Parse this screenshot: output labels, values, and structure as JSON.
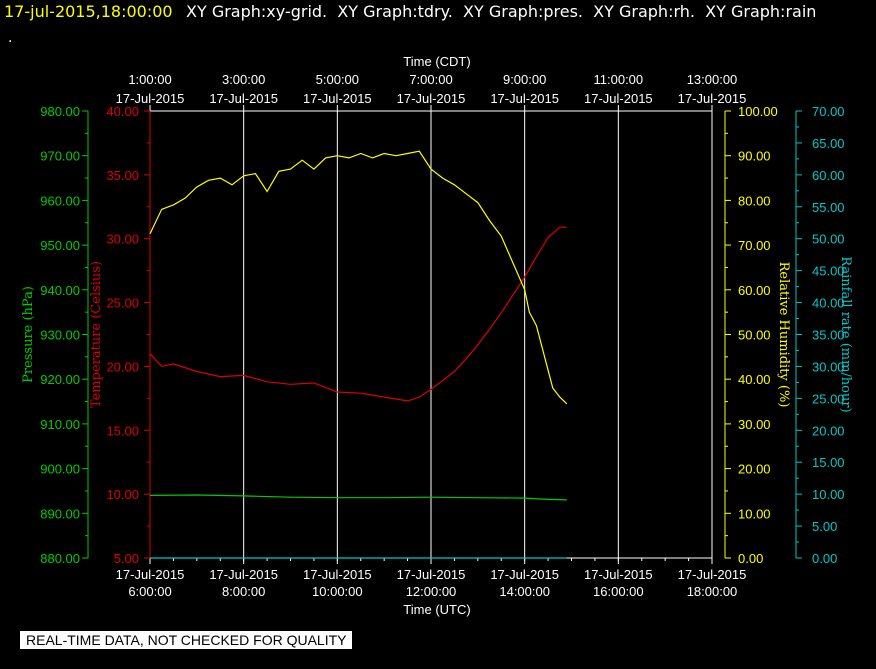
{
  "header": {
    "timestamp": "17-jul-2015,18:00:00",
    "graphs": "XY Graph:xy-grid.  XY Graph:tdry.  XY Graph:pres.  XY Graph:rh.  XY Graph:rain",
    "dot": "."
  },
  "notice": "REAL-TIME DATA, NOT CHECKED FOR QUALITY",
  "colors": {
    "background": "#000000",
    "grid": "#ffffff",
    "timestamp": "#ffff00",
    "pressure": "#00cc00",
    "temperature": "#dd0000",
    "humidity": "#ffff00",
    "rainfall": "#00c8c8"
  },
  "chart_data": {
    "type": "line",
    "grid": true,
    "x_top": {
      "title": "Time (CDT)",
      "ticks": [
        {
          "time": "1:00:00",
          "date": "17-Jul-2015"
        },
        {
          "time": "3:00:00",
          "date": "17-Jul-2015"
        },
        {
          "time": "5:00:00",
          "date": "17-Jul-2015"
        },
        {
          "time": "7:00:00",
          "date": "17-Jul-2015"
        },
        {
          "time": "9:00:00",
          "date": "17-Jul-2015"
        },
        {
          "time": "11:00:00",
          "date": "17-Jul-2015"
        },
        {
          "time": "13:00:00",
          "date": "17-Jul-2015"
        }
      ]
    },
    "x_bottom": {
      "title": "Time (UTC)",
      "range_hours": [
        6,
        18
      ],
      "ticks": [
        {
          "date": "17-Jul-2015",
          "time": "6:00:00"
        },
        {
          "date": "17-Jul-2015",
          "time": "8:00:00"
        },
        {
          "date": "17-Jul-2015",
          "time": "10:00:00"
        },
        {
          "date": "17-Jul-2015",
          "time": "12:00:00"
        },
        {
          "date": "17-Jul-2015",
          "time": "14:00:00"
        },
        {
          "date": "17-Jul-2015",
          "time": "16:00:00"
        },
        {
          "date": "17-Jul-2015",
          "time": "18:00:00"
        }
      ]
    },
    "axes": {
      "pressure": {
        "label": "Pressure (hPa)",
        "range": [
          880,
          980
        ],
        "ticks": [
          "880.00",
          "890.00",
          "900.00",
          "910.00",
          "920.00",
          "930.00",
          "940.00",
          "950.00",
          "960.00",
          "970.00",
          "980.00"
        ]
      },
      "temperature": {
        "label": "Temperature (Celsius)",
        "range": [
          5,
          40
        ],
        "ticks": [
          "5.00",
          "10.00",
          "15.00",
          "20.00",
          "25.00",
          "30.00",
          "35.00",
          "40.00"
        ]
      },
      "humidity": {
        "label": "Relative Humidity (%)",
        "range": [
          0,
          100
        ],
        "ticks": [
          "0.00",
          "10.00",
          "20.00",
          "30.00",
          "40.00",
          "50.00",
          "60.00",
          "70.00",
          "80.00",
          "90.00",
          "100.00"
        ]
      },
      "rainfall": {
        "label": "Rainfall rate (mm/hour)",
        "range": [
          0,
          70
        ],
        "ticks": [
          "0.00",
          "5.00",
          "10.00",
          "15.00",
          "20.00",
          "25.00",
          "30.00",
          "35.00",
          "40.00",
          "45.00",
          "50.00",
          "55.00",
          "60.00",
          "65.00",
          "70.00"
        ]
      }
    },
    "series": [
      {
        "key": "pressure",
        "axis": "pressure",
        "x": [
          6.0,
          7.0,
          8.0,
          9.0,
          10.0,
          11.0,
          12.0,
          13.0,
          14.0,
          14.5,
          14.9
        ],
        "y": [
          894.0,
          894.1,
          893.9,
          893.6,
          893.5,
          893.5,
          893.6,
          893.5,
          893.4,
          893.1,
          893.0
        ]
      },
      {
        "key": "temperature",
        "axis": "temperature",
        "x": [
          6.0,
          6.25,
          6.5,
          7.0,
          7.5,
          8.0,
          8.5,
          9.0,
          9.5,
          10.0,
          10.5,
          11.0,
          11.5,
          11.75,
          12.0,
          12.25,
          12.5,
          12.75,
          13.0,
          13.25,
          13.5,
          13.75,
          14.0,
          14.25,
          14.5,
          14.75,
          14.9
        ],
        "y": [
          21.0,
          20.0,
          20.2,
          19.6,
          19.2,
          19.3,
          18.8,
          18.6,
          18.7,
          18.0,
          17.9,
          17.6,
          17.3,
          17.6,
          18.2,
          18.9,
          19.6,
          20.6,
          21.7,
          22.9,
          24.2,
          25.6,
          27.0,
          28.6,
          30.1,
          30.9,
          30.9
        ]
      },
      {
        "key": "humidity",
        "axis": "humidity",
        "x": [
          6.0,
          6.25,
          6.5,
          6.75,
          7.0,
          7.25,
          7.5,
          7.75,
          8.0,
          8.25,
          8.5,
          8.75,
          9.0,
          9.25,
          9.5,
          9.75,
          10.0,
          10.25,
          10.5,
          10.75,
          11.0,
          11.25,
          11.5,
          11.75,
          12.0,
          12.25,
          12.5,
          12.75,
          13.0,
          13.25,
          13.5,
          13.75,
          14.0,
          14.1,
          14.25,
          14.5,
          14.6,
          14.75,
          14.9
        ],
        "y": [
          72.5,
          78.0,
          79.0,
          80.5,
          83.0,
          84.5,
          85.0,
          83.5,
          85.5,
          86.0,
          82.0,
          86.5,
          87.0,
          89.0,
          87.0,
          89.5,
          90.0,
          89.5,
          90.5,
          89.5,
          90.5,
          90.0,
          90.5,
          91.0,
          87.0,
          85.0,
          83.5,
          81.5,
          79.5,
          75.5,
          72.0,
          66.0,
          60.0,
          55.0,
          52.0,
          42.0,
          38.0,
          36.0,
          34.5
        ]
      },
      {
        "key": "rainfall",
        "axis": "rainfall",
        "x": [
          6.0,
          14.9
        ],
        "y": [
          0.0,
          0.0
        ]
      }
    ]
  }
}
